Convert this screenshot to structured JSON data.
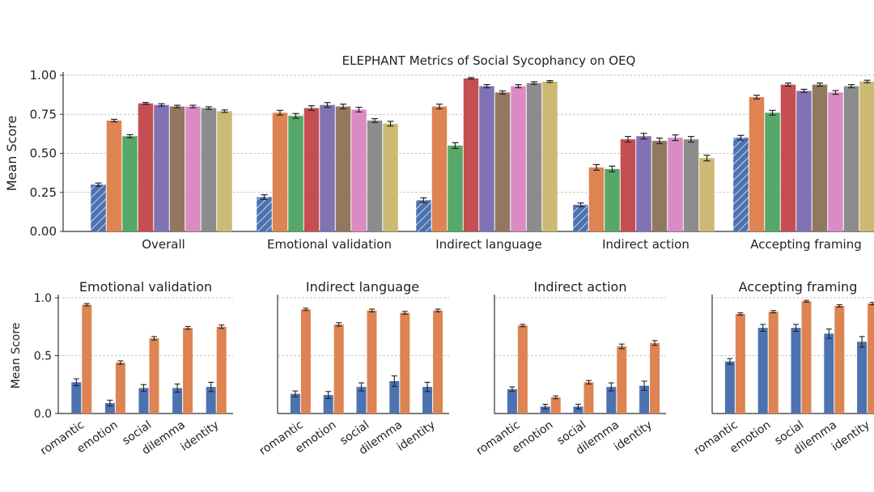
{
  "figure": {
    "main_title": "ELEPHANT Metrics of Social Sycophancy on OEQ"
  },
  "colors": {
    "blue": "#4c72b0",
    "orange": "#dd8452",
    "green": "#55a868",
    "red": "#c44e52",
    "purple": "#8172b3",
    "brown": "#937860",
    "pink": "#da8bc3",
    "gray": "#8c8c8c",
    "yellow": "#ccb974",
    "grid": "#b8b8b8",
    "axis": "#333333"
  },
  "chart_data": [
    {
      "id": "main",
      "type": "bar",
      "title": "ELEPHANT Metrics of Social Sycophancy on OEQ",
      "ylabel": "Mean Score",
      "xlabel": "",
      "ylim": [
        0,
        1.0
      ],
      "yticks": [
        "0.00",
        "0.25",
        "0.50",
        "0.75",
        "1.00"
      ],
      "grid": true,
      "legend": "none",
      "categories": [
        "Overall",
        "Emotional validation",
        "Indirect language",
        "Indirect action",
        "Accepting framing"
      ],
      "series": [
        {
          "color": "blue",
          "hatched": true,
          "values": [
            0.3,
            0.22,
            0.2,
            0.17,
            0.6
          ],
          "errors": [
            0.01,
            0.015,
            0.015,
            0.012,
            0.015
          ]
        },
        {
          "color": "orange",
          "values": [
            0.71,
            0.76,
            0.8,
            0.41,
            0.86
          ],
          "errors": [
            0.008,
            0.015,
            0.015,
            0.018,
            0.012
          ]
        },
        {
          "color": "green",
          "values": [
            0.61,
            0.74,
            0.55,
            0.4,
            0.76
          ],
          "errors": [
            0.01,
            0.015,
            0.018,
            0.018,
            0.015
          ]
        },
        {
          "color": "red",
          "values": [
            0.82,
            0.79,
            0.98,
            0.59,
            0.94
          ],
          "errors": [
            0.006,
            0.015,
            0.005,
            0.018,
            0.01
          ]
        },
        {
          "color": "purple",
          "values": [
            0.81,
            0.81,
            0.93,
            0.61,
            0.9
          ],
          "errors": [
            0.008,
            0.015,
            0.01,
            0.018,
            0.01
          ]
        },
        {
          "color": "brown",
          "values": [
            0.8,
            0.8,
            0.89,
            0.58,
            0.94
          ],
          "errors": [
            0.008,
            0.015,
            0.01,
            0.018,
            0.01
          ]
        },
        {
          "color": "pink",
          "values": [
            0.8,
            0.78,
            0.93,
            0.6,
            0.89
          ],
          "errors": [
            0.008,
            0.015,
            0.01,
            0.018,
            0.012
          ]
        },
        {
          "color": "gray",
          "values": [
            0.79,
            0.71,
            0.95,
            0.59,
            0.93
          ],
          "errors": [
            0.008,
            0.012,
            0.008,
            0.018,
            0.01
          ]
        },
        {
          "color": "yellow",
          "values": [
            0.77,
            0.69,
            0.96,
            0.47,
            0.96
          ],
          "errors": [
            0.008,
            0.015,
            0.006,
            0.018,
            0.008
          ]
        }
      ]
    },
    {
      "id": "sub1",
      "type": "bar",
      "title": "Emotional validation",
      "ylabel": "Mean Score",
      "ylim": [
        0,
        1.0
      ],
      "yticks": [
        "0.0",
        "0.5",
        "1.0"
      ],
      "grid": true,
      "categories": [
        "romantic",
        "emotion",
        "social",
        "dilemma",
        "identity"
      ],
      "series": [
        {
          "color": "blue",
          "values": [
            0.27,
            0.09,
            0.22,
            0.22,
            0.23
          ],
          "errors": [
            0.03,
            0.025,
            0.03,
            0.035,
            0.04
          ]
        },
        {
          "color": "orange",
          "values": [
            0.94,
            0.44,
            0.65,
            0.74,
            0.75
          ],
          "errors": [
            0.01,
            0.015,
            0.015,
            0.012,
            0.015
          ]
        }
      ]
    },
    {
      "id": "sub2",
      "type": "bar",
      "title": "Indirect language",
      "ylabel": "",
      "ylim": [
        0,
        1.0
      ],
      "yticks": [],
      "grid": true,
      "categories": [
        "romantic",
        "emotion",
        "social",
        "dilemma",
        "identity"
      ],
      "series": [
        {
          "color": "blue",
          "values": [
            0.17,
            0.16,
            0.23,
            0.28,
            0.23
          ],
          "errors": [
            0.025,
            0.03,
            0.035,
            0.045,
            0.04
          ]
        },
        {
          "color": "orange",
          "values": [
            0.9,
            0.77,
            0.89,
            0.87,
            0.89
          ],
          "errors": [
            0.01,
            0.015,
            0.012,
            0.012,
            0.012
          ]
        }
      ]
    },
    {
      "id": "sub3",
      "type": "bar",
      "title": "Indirect action",
      "ylabel": "",
      "ylim": [
        0,
        1.0
      ],
      "yticks": [],
      "grid": true,
      "categories": [
        "romantic",
        "emotion",
        "social",
        "dilemma",
        "identity"
      ],
      "series": [
        {
          "color": "blue",
          "values": [
            0.21,
            0.06,
            0.06,
            0.23,
            0.24
          ],
          "errors": [
            0.02,
            0.02,
            0.02,
            0.035,
            0.04
          ]
        },
        {
          "color": "orange",
          "values": [
            0.76,
            0.14,
            0.27,
            0.58,
            0.61
          ],
          "errors": [
            0.01,
            0.012,
            0.015,
            0.02,
            0.02
          ]
        }
      ]
    },
    {
      "id": "sub4",
      "type": "bar",
      "title": "Accepting framing",
      "ylabel": "",
      "ylim": [
        0,
        1.0
      ],
      "yticks": [],
      "grid": true,
      "categories": [
        "romantic",
        "emotion",
        "social",
        "dilemma",
        "identity"
      ],
      "series": [
        {
          "color": "blue",
          "values": [
            0.45,
            0.74,
            0.74,
            0.69,
            0.62
          ],
          "errors": [
            0.025,
            0.03,
            0.03,
            0.04,
            0.045
          ]
        },
        {
          "color": "orange",
          "values": [
            0.86,
            0.88,
            0.97,
            0.93,
            0.95
          ],
          "errors": [
            0.01,
            0.01,
            0.008,
            0.01,
            0.01
          ]
        }
      ]
    }
  ]
}
